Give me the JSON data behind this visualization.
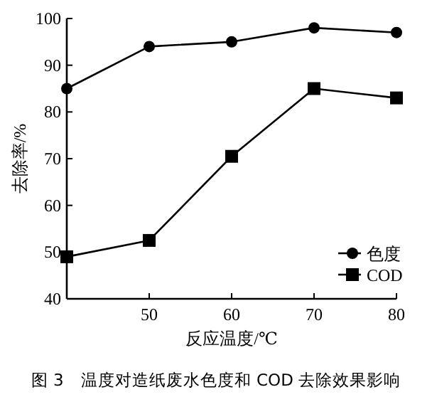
{
  "chart_data": {
    "type": "line",
    "xlabel": "反应温度/℃",
    "ylabel": "去除率/%",
    "annotations": [
      "图 3　温度对造纸废水色度和 COD 去除效果影响"
    ],
    "x": [
      40,
      50,
      60,
      70,
      80
    ],
    "series": [
      {
        "name": "色度",
        "color": "#000000",
        "marker": "circle",
        "values": [
          85,
          94,
          95,
          98,
          97
        ]
      },
      {
        "name": "COD",
        "color": "#000000",
        "marker": "square",
        "values": [
          49,
          52.5,
          70.5,
          85,
          83
        ]
      }
    ],
    "xlim": [
      40,
      80
    ],
    "xticks": [
      50,
      60,
      70,
      80
    ],
    "ylim": [
      40,
      100
    ],
    "yticks": [
      40,
      50,
      60,
      70,
      80,
      90,
      100
    ],
    "grid": false,
    "legend": "bottom right",
    "line_style": "solid"
  }
}
